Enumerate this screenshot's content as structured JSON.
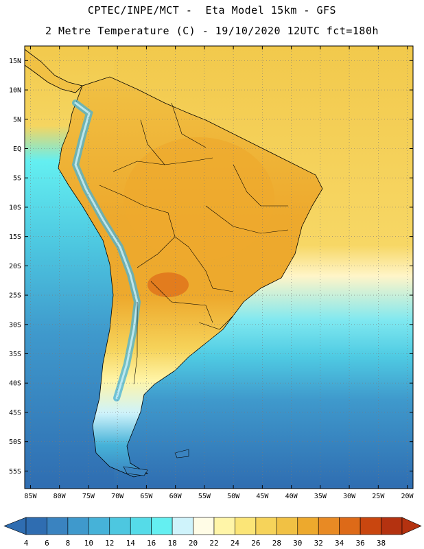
{
  "header": {
    "line1": "CPTEC/INPE/MCT -  Eta Model 15km - GFS",
    "line2": "2 Metre Temperature (C) - 19/10/2020 12UTC fct=180h"
  },
  "map": {
    "lat_labels": [
      "15N",
      "10N",
      "5N",
      "EQ",
      "5S",
      "10S",
      "15S",
      "20S",
      "25S",
      "30S",
      "35S",
      "40S",
      "45S",
      "50S",
      "55S"
    ],
    "lon_labels": [
      "85W",
      "80W",
      "75W",
      "70W",
      "65W",
      "60W",
      "55W",
      "50W",
      "45W",
      "40W",
      "35W",
      "30W",
      "25W",
      "20W"
    ],
    "lat_range": [
      17.5,
      -58
    ],
    "lon_range": [
      -86,
      -19
    ],
    "ocean_base_color": "#f2c94c"
  },
  "legend": {
    "values": [
      "4",
      "6",
      "8",
      "10",
      "12",
      "14",
      "16",
      "18",
      "20",
      "22",
      "24",
      "26",
      "28",
      "30",
      "32",
      "34",
      "36",
      "38"
    ],
    "colors": [
      "#2f6db1",
      "#3a83c0",
      "#3f99cc",
      "#46b2d8",
      "#4dc7e0",
      "#55dbe8",
      "#64eff1",
      "#cff3fb",
      "#fffce6",
      "#fff5a8",
      "#fbe577",
      "#f6d35a",
      "#f1c144",
      "#eda92d",
      "#e88a24",
      "#dd6a18",
      "#c9460f",
      "#b43210"
    ],
    "low_arrow_color": "#2f6db1",
    "high_arrow_color": "#b43210"
  }
}
